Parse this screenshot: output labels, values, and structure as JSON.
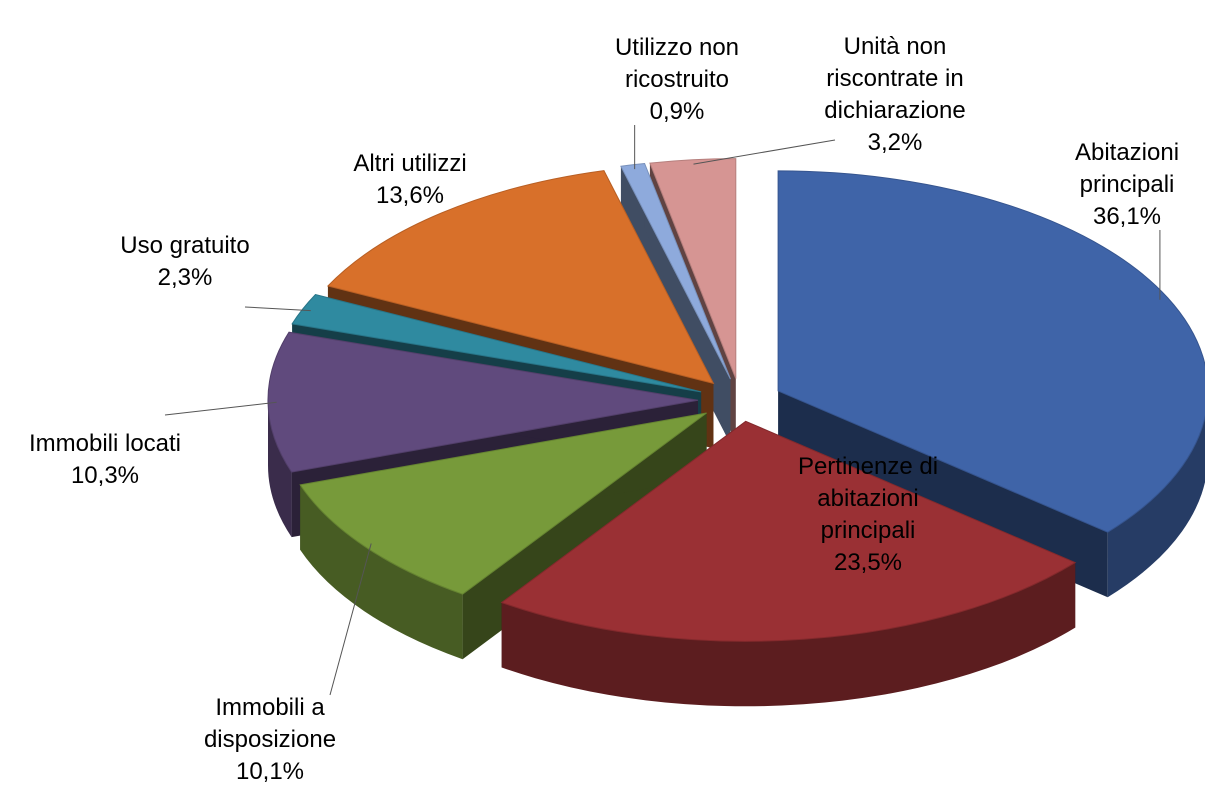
{
  "chart_data": {
    "type": "pie",
    "categories": [
      "Abitazioni principali",
      "Pertinenze di abitazioni principali",
      "Immobili a disposizione",
      "Immobili locati",
      "Uso gratuito",
      "Altri utilizzi",
      "Utilizzo non ricostruito",
      "Unità non riscontrate in dichiarazione"
    ],
    "values": [
      36.1,
      23.5,
      10.1,
      10.3,
      2.3,
      13.6,
      0.9,
      3.2
    ],
    "value_labels": [
      "36,1%",
      "23,5%",
      "10,1%",
      "10,3%",
      "2,3%",
      "13,6%",
      "0,9%",
      "3,2%"
    ],
    "colors": [
      "#3f64a8",
      "#9a3034",
      "#779a3a",
      "#604a7d",
      "#2f8aa0",
      "#d8702a",
      "#8eaadc",
      "#d69593"
    ]
  }
}
